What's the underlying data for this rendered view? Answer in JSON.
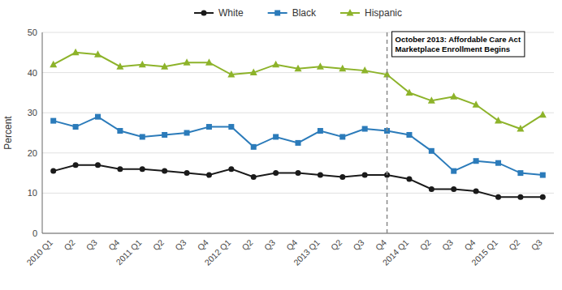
{
  "chart_data": {
    "type": "line",
    "categories": [
      "2010 Q1",
      "Q2",
      "Q3",
      "Q4",
      "2011 Q1",
      "Q2",
      "Q3",
      "Q4",
      "2012 Q1",
      "Q2",
      "Q3",
      "Q4",
      "2013 Q1",
      "Q2",
      "Q3",
      "Q4",
      "2014 Q1",
      "Q2",
      "Q3",
      "Q4",
      "2015 Q1",
      "Q2",
      "Q3"
    ],
    "series": [
      {
        "name": "White",
        "color": "#1a1a1a",
        "marker": "circle",
        "values": [
          15.5,
          17.0,
          17.0,
          16.0,
          16.0,
          15.5,
          15.0,
          14.5,
          16.0,
          14.0,
          15.0,
          15.0,
          14.5,
          14.0,
          14.5,
          14.5,
          13.5,
          11.0,
          11.0,
          10.5,
          9.0,
          9.0,
          9.0
        ]
      },
      {
        "name": "Black",
        "color": "#2b7bba",
        "marker": "square",
        "values": [
          28.0,
          26.5,
          29.0,
          25.5,
          24.0,
          24.5,
          25.0,
          26.5,
          26.5,
          21.5,
          24.0,
          22.5,
          25.5,
          24.0,
          26.0,
          25.5,
          24.5,
          20.5,
          15.5,
          18.0,
          17.5,
          15.0,
          14.5
        ]
      },
      {
        "name": "Hispanic",
        "color": "#8db32a",
        "marker": "triangle",
        "values": [
          42.0,
          45.0,
          44.5,
          41.5,
          42.0,
          41.5,
          42.5,
          42.5,
          39.5,
          40.0,
          42.0,
          41.0,
          41.5,
          41.0,
          40.5,
          39.5,
          35.0,
          33.0,
          34.0,
          32.0,
          28.0,
          26.0,
          29.5
        ]
      }
    ],
    "annotations": [
      {
        "text": "October 2013: Affordable Care Act\nMarketplace Enrollment Begins",
        "category_index": 15
      }
    ],
    "y_label": "Percent",
    "ylim": [
      0,
      50
    ],
    "yticks": [
      0,
      10,
      20,
      30,
      40,
      50
    ],
    "grid": true,
    "legend": "top"
  }
}
